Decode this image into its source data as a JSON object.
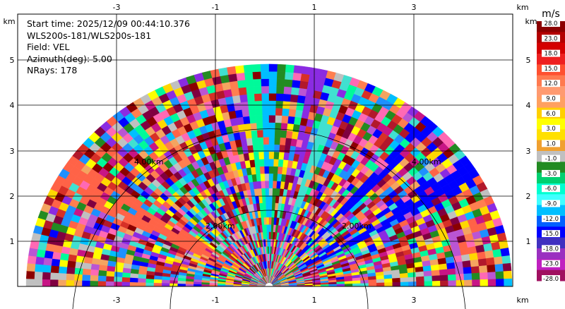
{
  "info": {
    "start_time": "Start time: 2025/12/09 00:44:10.376",
    "station": "WLS200s-181/WLS200s-181",
    "field": "Field: VEL",
    "azimuth": "Azimuth(deg): 5.00",
    "nrays": "NRays: 178"
  },
  "axes": {
    "x_ticks": [
      "-3",
      "-1",
      "1",
      "3"
    ],
    "x_tick_values": [
      -3,
      -1,
      1,
      3
    ],
    "y_ticks": [
      "1",
      "2",
      "3",
      "4",
      "5"
    ],
    "y_tick_values": [
      1,
      2,
      3,
      4,
      5
    ],
    "unit": "km"
  },
  "rings": [
    {
      "label": "2.00km",
      "left_label": "2.00km",
      "right_label": "2.00km"
    },
    {
      "label": "4.00km",
      "left_label": "4.00km",
      "right_label": "4.00km"
    }
  ],
  "colorbar": {
    "unit": "m/s",
    "labels": [
      "28.0",
      "23.0",
      "18.0",
      "15.0",
      "12.0",
      "9.0",
      "6.0",
      "3.0",
      "1.0",
      "-1.0",
      "-3.0",
      "-6.0",
      "-9.0",
      "-12.0",
      "-15.0",
      "-18.0",
      "-23.0",
      "-28.0"
    ],
    "colors": [
      "#8b0000",
      "#b30000",
      "#d40000",
      "#ee2020",
      "#ff5030",
      "#ff7a50",
      "#ff9a70",
      "#ffa060",
      "#ffd000",
      "#ffff00",
      "#ffe000",
      "#f0a030",
      "#c0c0c0",
      "#228b22",
      "#00d070",
      "#00ffd0",
      "#40ffff",
      "#00bfff",
      "#0060ff",
      "#0000ff",
      "#4030c0",
      "#9a30c0",
      "#c020c0",
      "#a01060"
    ]
  },
  "scan_colors": [
    "#8b0000",
    "#b2182b",
    "#d73027",
    "#ff6347",
    "#ff7f50",
    "#ffd700",
    "#ffff00",
    "#f4a460",
    "#c0c0c0",
    "#228b22",
    "#00fa9a",
    "#40e0d0",
    "#00bfff",
    "#1e90ff",
    "#0000ff",
    "#8a2be2",
    "#ba55d3",
    "#c71585",
    "#800040",
    "#ff69b4"
  ]
}
